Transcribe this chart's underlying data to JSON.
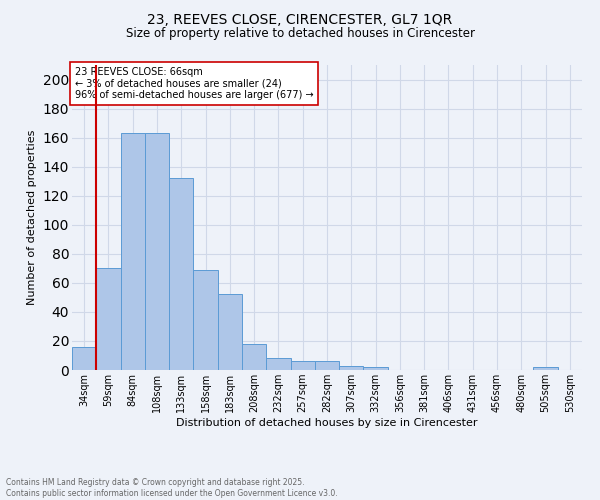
{
  "title1": "23, REEVES CLOSE, CIRENCESTER, GL7 1QR",
  "title2": "Size of property relative to detached houses in Cirencester",
  "xlabel": "Distribution of detached houses by size in Cirencester",
  "ylabel": "Number of detached properties",
  "bin_labels": [
    "34sqm",
    "59sqm",
    "84sqm",
    "108sqm",
    "133sqm",
    "158sqm",
    "183sqm",
    "208sqm",
    "232sqm",
    "257sqm",
    "282sqm",
    "307sqm",
    "332sqm",
    "356sqm",
    "381sqm",
    "406sqm",
    "431sqm",
    "456sqm",
    "480sqm",
    "505sqm",
    "530sqm"
  ],
  "bar_values": [
    16,
    70,
    163,
    163,
    132,
    69,
    52,
    18,
    8,
    6,
    6,
    3,
    2,
    0,
    0,
    0,
    0,
    0,
    0,
    2,
    0
  ],
  "bar_color": "#aec6e8",
  "bar_edge_color": "#5b9bd5",
  "vline_color": "#cc0000",
  "vline_idx": 1,
  "annotation_text": "23 REEVES CLOSE: 66sqm\n← 3% of detached houses are smaller (24)\n96% of semi-detached houses are larger (677) →",
  "annotation_box_color": "#ffffff",
  "annotation_box_edge": "#cc0000",
  "ylim": [
    0,
    210
  ],
  "yticks": [
    0,
    20,
    40,
    60,
    80,
    100,
    120,
    140,
    160,
    180,
    200
  ],
  "grid_color": "#d0d8e8",
  "footnote": "Contains HM Land Registry data © Crown copyright and database right 2025.\nContains public sector information licensed under the Open Government Licence v3.0.",
  "bg_color": "#eef2f9",
  "title1_fontsize": 10,
  "title2_fontsize": 8.5,
  "ylabel_fontsize": 8,
  "xlabel_fontsize": 8,
  "tick_fontsize": 7,
  "annot_fontsize": 7,
  "footnote_fontsize": 5.5,
  "footnote_color": "#666666"
}
